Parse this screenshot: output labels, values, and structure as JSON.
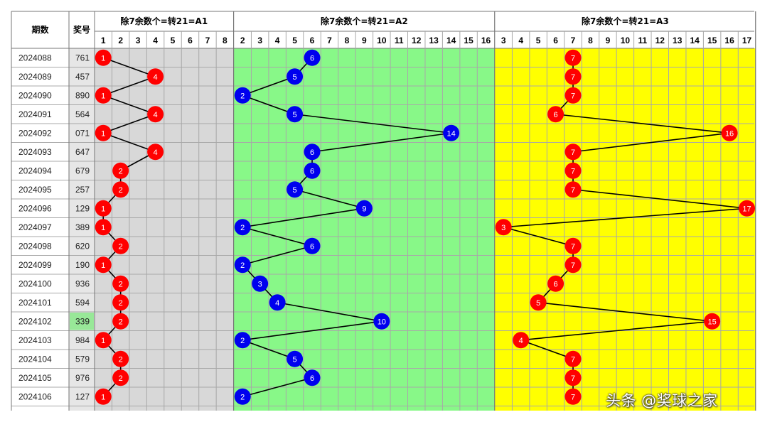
{
  "table": {
    "period_header": "期数",
    "number_header": "奖号",
    "highlight_row": 14,
    "highlight_color": "#98e898"
  },
  "colors": {
    "panel_gray": "#d8d8d8",
    "panel_green": "#88f888",
    "panel_yellow": "#ffff00",
    "ball_red": "#ff0000",
    "ball_blue": "#0000ee",
    "grid": "#a8a8a8"
  },
  "chart_data": {
    "type": "table",
    "rows": [
      {
        "period": "2024088",
        "number": "761",
        "a1": 1,
        "a2": 6,
        "a3": 7
      },
      {
        "period": "2024089",
        "number": "457",
        "a1": 4,
        "a2": 5,
        "a3": 7
      },
      {
        "period": "2024090",
        "number": "890",
        "a1": 1,
        "a2": 2,
        "a3": 7
      },
      {
        "period": "2024091",
        "number": "564",
        "a1": 4,
        "a2": 5,
        "a3": 6
      },
      {
        "period": "2024092",
        "number": "071",
        "a1": 1,
        "a2": 14,
        "a3": 16
      },
      {
        "period": "2024093",
        "number": "647",
        "a1": 4,
        "a2": 6,
        "a3": 7
      },
      {
        "period": "2024094",
        "number": "679",
        "a1": 2,
        "a2": 6,
        "a3": 7
      },
      {
        "period": "2024095",
        "number": "257",
        "a1": 2,
        "a2": 5,
        "a3": 7
      },
      {
        "period": "2024096",
        "number": "129",
        "a1": 1,
        "a2": 9,
        "a3": 17
      },
      {
        "period": "2024097",
        "number": "389",
        "a1": 1,
        "a2": 2,
        "a3": 3
      },
      {
        "period": "2024098",
        "number": "620",
        "a1": 2,
        "a2": 6,
        "a3": 7
      },
      {
        "period": "2024099",
        "number": "190",
        "a1": 1,
        "a2": 2,
        "a3": 7
      },
      {
        "period": "2024100",
        "number": "936",
        "a1": 2,
        "a2": 3,
        "a3": 6
      },
      {
        "period": "2024101",
        "number": "594",
        "a1": 2,
        "a2": 4,
        "a3": 5
      },
      {
        "period": "2024102",
        "number": "339",
        "a1": 2,
        "a2": 10,
        "a3": 15
      },
      {
        "period": "2024103",
        "number": "984",
        "a1": 1,
        "a2": 2,
        "a3": 4
      },
      {
        "period": "2024104",
        "number": "579",
        "a1": 2,
        "a2": 5,
        "a3": 7
      },
      {
        "period": "2024105",
        "number": "976",
        "a1": 2,
        "a2": 6,
        "a3": 7
      },
      {
        "period": "2024106",
        "number": "127",
        "a1": 1,
        "a2": 2,
        "a3": 7
      }
    ],
    "panels": [
      {
        "key": "a1",
        "title": "除7余数个=转21=A1",
        "columns": [
          1,
          2,
          3,
          4,
          5,
          6,
          7,
          8
        ],
        "ball": "red"
      },
      {
        "key": "a2",
        "title": "除7余数个=转21=A2",
        "columns": [
          2,
          3,
          4,
          5,
          6,
          7,
          8,
          9,
          10,
          11,
          12,
          13,
          14,
          15,
          16
        ],
        "ball": "blue"
      },
      {
        "key": "a3",
        "title": "除7余数个=转21=A3",
        "columns": [
          3,
          4,
          5,
          6,
          7,
          8,
          9,
          10,
          11,
          12,
          13,
          14,
          15,
          16,
          17
        ],
        "ball": "red"
      }
    ]
  },
  "watermark": "头条 @奖球之家"
}
